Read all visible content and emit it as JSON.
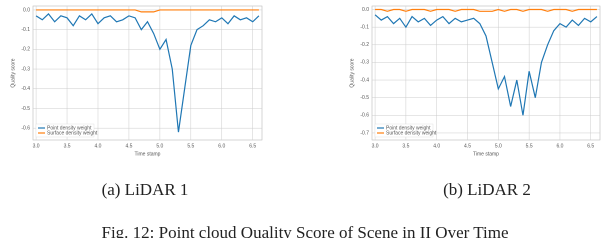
{
  "chart_data": [
    {
      "type": "line",
      "xlabel": "Time stamp",
      "ylabel": "Quality score",
      "subcaption": "(a) LiDAR 1",
      "x": [
        3.0,
        3.1,
        3.2,
        3.3,
        3.4,
        3.5,
        3.6,
        3.7,
        3.8,
        3.9,
        4.0,
        4.1,
        4.2,
        4.3,
        4.4,
        4.5,
        4.6,
        4.7,
        4.8,
        4.9,
        5.0,
        5.1,
        5.2,
        5.3,
        5.4,
        5.5,
        5.6,
        5.7,
        5.8,
        5.9,
        6.0,
        6.1,
        6.2,
        6.3,
        6.4,
        6.5,
        6.6
      ],
      "series": [
        {
          "name": "Point density weight",
          "color": "#1f77b4",
          "values": [
            -0.03,
            -0.05,
            -0.02,
            -0.06,
            -0.03,
            -0.04,
            -0.08,
            -0.03,
            -0.05,
            -0.02,
            -0.07,
            -0.04,
            -0.03,
            -0.06,
            -0.05,
            -0.03,
            -0.04,
            -0.1,
            -0.06,
            -0.12,
            -0.2,
            -0.15,
            -0.3,
            -0.62,
            -0.4,
            -0.18,
            -0.1,
            -0.08,
            -0.05,
            -0.06,
            -0.04,
            -0.07,
            -0.03,
            -0.05,
            -0.04,
            -0.06,
            -0.03
          ]
        },
        {
          "name": "Surface density weight",
          "color": "#ff7f0e",
          "values": [
            0,
            0,
            0,
            0,
            0,
            0,
            0,
            0,
            0,
            0,
            0,
            0,
            0,
            0,
            0,
            0,
            0,
            -0.01,
            -0.01,
            -0.01,
            0,
            0,
            0,
            0,
            0,
            0,
            0,
            0,
            0,
            0,
            0,
            0,
            0,
            0,
            0,
            0,
            0
          ]
        }
      ],
      "xlim": [
        2.95,
        6.65
      ],
      "ylim": [
        -0.66,
        0.02
      ],
      "xticks": [
        {
          "value": 3,
          "label": "3.0"
        },
        3.5,
        {
          "value": 4,
          "label": "4.0"
        },
        4.5,
        {
          "value": 5,
          "label": "5.0"
        },
        5.5,
        {
          "value": 6,
          "label": "6.0"
        },
        6.5
      ],
      "yticks": [
        {
          "value": 0,
          "label": "0.0"
        },
        -0.1,
        -0.2,
        -0.3,
        -0.4,
        -0.5,
        -0.6
      ],
      "grid": true,
      "legend": "lower left"
    },
    {
      "type": "line",
      "xlabel": "Time stamp",
      "ylabel": "Quality score",
      "subcaption": "(b) LiDAR 2",
      "x": [
        3.0,
        3.1,
        3.2,
        3.3,
        3.4,
        3.5,
        3.6,
        3.7,
        3.8,
        3.9,
        4.0,
        4.1,
        4.2,
        4.3,
        4.4,
        4.5,
        4.6,
        4.7,
        4.8,
        4.9,
        5.0,
        5.1,
        5.2,
        5.3,
        5.4,
        5.5,
        5.6,
        5.7,
        5.8,
        5.9,
        6.0,
        6.1,
        6.2,
        6.3,
        6.4,
        6.5,
        6.6
      ],
      "series": [
        {
          "name": "Point density weight",
          "color": "#1f77b4",
          "values": [
            -0.03,
            -0.06,
            -0.04,
            -0.08,
            -0.05,
            -0.1,
            -0.04,
            -0.07,
            -0.05,
            -0.09,
            -0.06,
            -0.04,
            -0.08,
            -0.05,
            -0.07,
            -0.06,
            -0.05,
            -0.08,
            -0.15,
            -0.3,
            -0.45,
            -0.38,
            -0.55,
            -0.4,
            -0.6,
            -0.35,
            -0.5,
            -0.3,
            -0.2,
            -0.12,
            -0.08,
            -0.1,
            -0.06,
            -0.09,
            -0.05,
            -0.07,
            -0.04
          ]
        },
        {
          "name": "Surface density weight",
          "color": "#ff7f0e",
          "values": [
            0,
            0,
            -0.01,
            0,
            0,
            -0.01,
            0,
            0,
            0,
            -0.01,
            0,
            0,
            0,
            -0.01,
            0,
            0,
            0,
            -0.01,
            -0.01,
            -0.01,
            0,
            -0.01,
            0,
            0,
            -0.01,
            0,
            0,
            0,
            -0.01,
            0,
            0,
            0,
            -0.01,
            0,
            0,
            0,
            0
          ]
        }
      ],
      "xlim": [
        2.95,
        6.65
      ],
      "ylim": [
        -0.74,
        0.02
      ],
      "xticks": [
        {
          "value": 3,
          "label": "3.0"
        },
        3.5,
        {
          "value": 4,
          "label": "4.0"
        },
        4.5,
        {
          "value": 5,
          "label": "5.0"
        },
        5.5,
        {
          "value": 6,
          "label": "6.0"
        },
        6.5
      ],
      "yticks": [
        {
          "value": 0,
          "label": "0.0"
        },
        -0.1,
        -0.2,
        -0.3,
        -0.4,
        -0.5,
        -0.6,
        -0.7
      ],
      "grid": true,
      "legend": "lower left"
    }
  ],
  "caption": "Fig. 12: Point cloud Quality Score of Scene in II Over Time"
}
